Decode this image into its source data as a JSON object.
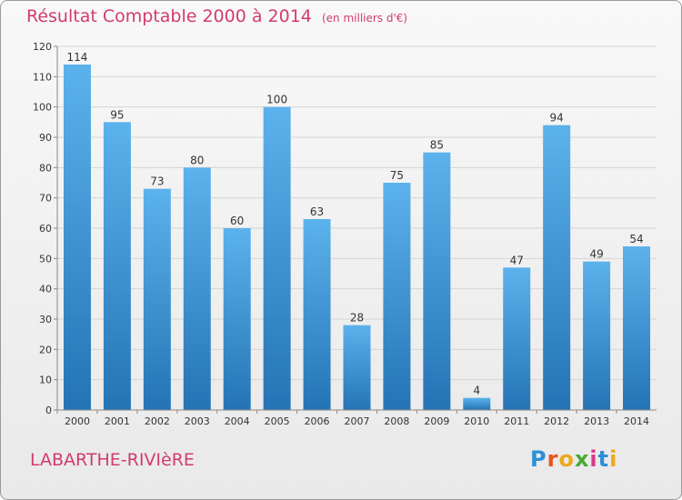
{
  "header": {
    "title": "Résultat Comptable 2000 à 2014",
    "unit": "(en milliers d'€)"
  },
  "footer": {
    "place": "LABARTHE-RIVIèRE",
    "logo_text": "Proxiti",
    "logo_colors": [
      "#2f8fd6",
      "#e8541e",
      "#f0a818",
      "#4aa832",
      "#d93a8a",
      "#2f8fd6",
      "#f0a818"
    ]
  },
  "colors": {
    "title": "#d23c6a",
    "bar_light": "#5cb2ec",
    "bar_dark": "#2474b5",
    "grid": "#d4d4d4",
    "axis_text": "#333333"
  },
  "chart_data": {
    "type": "bar",
    "title": "Résultat Comptable 2000 à 2014",
    "xlabel": "",
    "ylabel": "",
    "categories": [
      "2000",
      "2001",
      "2002",
      "2003",
      "2004",
      "2005",
      "2006",
      "2007",
      "2008",
      "2009",
      "2010",
      "2011",
      "2012",
      "2013",
      "2014"
    ],
    "values": [
      114,
      95,
      73,
      80,
      60,
      100,
      63,
      28,
      75,
      85,
      4,
      47,
      94,
      49,
      54
    ],
    "ylim": [
      0,
      120
    ],
    "yticks": [
      0,
      10,
      20,
      30,
      40,
      50,
      60,
      70,
      80,
      90,
      100,
      110,
      120
    ],
    "grid": true,
    "legend": "none"
  }
}
